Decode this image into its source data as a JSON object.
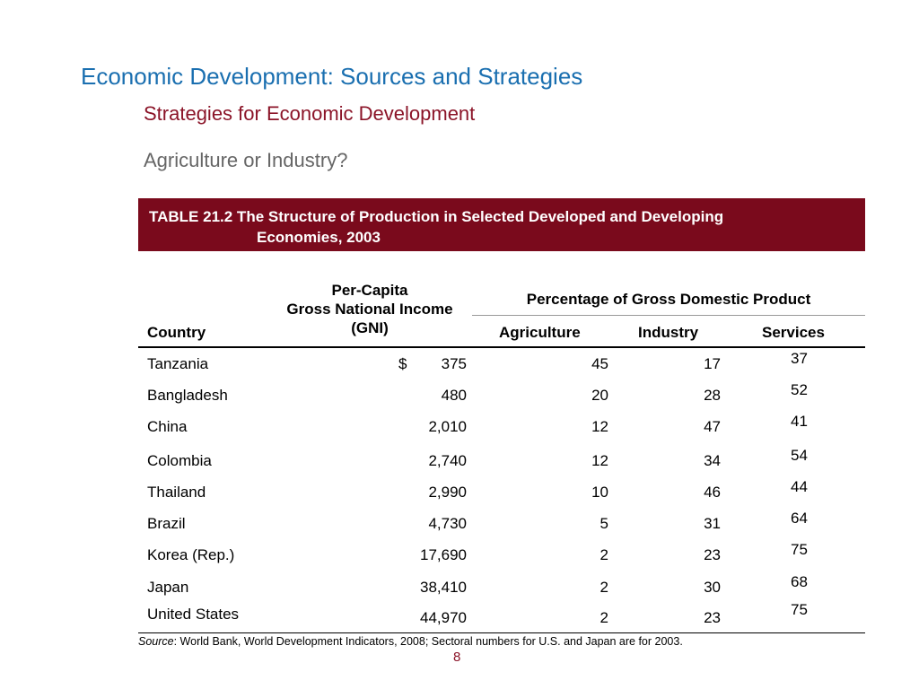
{
  "slide": {
    "title": "Economic Development:  Sources and Strategies",
    "subtitle": "Strategies for Economic Development",
    "question": "Agriculture or Industry?",
    "page_number": "8"
  },
  "table": {
    "caption_line1": "TABLE 21.2  The Structure of Production in Selected Developed and Developing",
    "caption_line2": "Economies, 2003",
    "headers": {
      "country": "Country",
      "gni_line1": "Per-Capita",
      "gni_line2": "Gross National Income",
      "gni_line3": "(GNI)",
      "gdp_group": "Percentage of Gross Domestic Product",
      "agriculture": "Agriculture",
      "industry": "Industry",
      "services": "Services"
    },
    "currency_symbol": "$",
    "rows": [
      {
        "country": "Tanzania",
        "gni": "375",
        "agriculture": "45",
        "industry": "17",
        "services": "37"
      },
      {
        "country": "Bangladesh",
        "gni": "480",
        "agriculture": "20",
        "industry": "28",
        "services": "52"
      },
      {
        "country": "China",
        "gni": "2,010",
        "agriculture": "12",
        "industry": "47",
        "services": "41"
      },
      {
        "country": "Colombia",
        "gni": "2,740",
        "agriculture": "12",
        "industry": "34",
        "services": "54"
      },
      {
        "country": "Thailand",
        "gni": "2,990",
        "agriculture": "10",
        "industry": "46",
        "services": "44"
      },
      {
        "country": "Brazil",
        "gni": "4,730",
        "agriculture": "5",
        "industry": "31",
        "services": "64"
      },
      {
        "country": "Korea (Rep.)",
        "gni": "17,690",
        "agriculture": "2",
        "industry": "23",
        "services": "75"
      },
      {
        "country": "Japan",
        "gni": "38,410",
        "agriculture": "2",
        "industry": "30",
        "services": "68"
      },
      {
        "country": "United States",
        "gni": "44,970",
        "agriculture": "2",
        "industry": "23",
        "services": "75"
      }
    ],
    "source_label": "Source",
    "source_text": ":  World Bank, World Development Indicators, 2008; Sectoral numbers for U.S. and Japan are for 2003."
  },
  "colors": {
    "title": "#1a6fb0",
    "subtitle": "#8b1428",
    "banner": "#7a0a1c"
  }
}
